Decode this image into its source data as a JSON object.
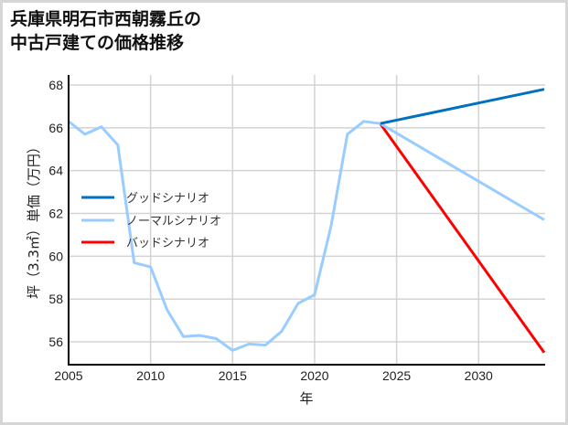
{
  "title": {
    "line1": "兵庫県明石市西朝霧丘の",
    "line2": "中古戸建ての価格推移"
  },
  "colors": {
    "good": "#0070c0",
    "normal": "#99ccff",
    "bad": "#ff0000",
    "grid": "#d3d3d3",
    "axis": "#000000",
    "frame": "#d6d6d6"
  },
  "chart_data": {
    "type": "line",
    "title": "兵庫県明石市西朝霧丘の中古戸建ての価格推移",
    "xlabel": "年",
    "ylabel": "坪（3.3㎡）単価（万円）",
    "xlim": [
      2005,
      2034
    ],
    "ylim": [
      55,
      68.5
    ],
    "xticks": [
      2005,
      2010,
      2015,
      2020,
      2025,
      2030
    ],
    "yticks": [
      56,
      58,
      60,
      62,
      64,
      66,
      68
    ],
    "grid": true,
    "legend_position": "left-middle",
    "legend": [
      "グッドシナリオ",
      "ノーマルシナリオ",
      "バッドシナリオ"
    ],
    "series": [
      {
        "name": "ノーマルシナリオ (実績)",
        "color": "#99ccff",
        "x": [
          2005,
          2006,
          2007,
          2008,
          2009,
          2010,
          2011,
          2012,
          2013,
          2014,
          2015,
          2016,
          2017,
          2018,
          2019,
          2020,
          2021,
          2022,
          2023,
          2024
        ],
        "values": [
          66.3,
          65.7,
          66.05,
          65.2,
          59.7,
          59.5,
          57.5,
          56.25,
          56.3,
          56.15,
          55.6,
          55.9,
          55.85,
          56.5,
          57.8,
          58.2,
          61.4,
          65.7,
          66.3,
          66.2
        ]
      },
      {
        "name": "グッドシナリオ",
        "color": "#0070c0",
        "x": [
          2024,
          2034
        ],
        "values": [
          66.2,
          67.8
        ]
      },
      {
        "name": "ノーマルシナリオ",
        "color": "#99ccff",
        "x": [
          2024,
          2034
        ],
        "values": [
          66.2,
          61.7
        ]
      },
      {
        "name": "バッドシナリオ",
        "color": "#ff0000",
        "x": [
          2024,
          2034
        ],
        "values": [
          66.2,
          55.5
        ]
      }
    ]
  },
  "legend": {
    "good": "グッドシナリオ",
    "normal": "ノーマルシナリオ",
    "bad": "バッドシナリオ"
  },
  "axes": {
    "xlabel": "年",
    "ylabel": "坪（3.3㎡）単価（万円）"
  }
}
